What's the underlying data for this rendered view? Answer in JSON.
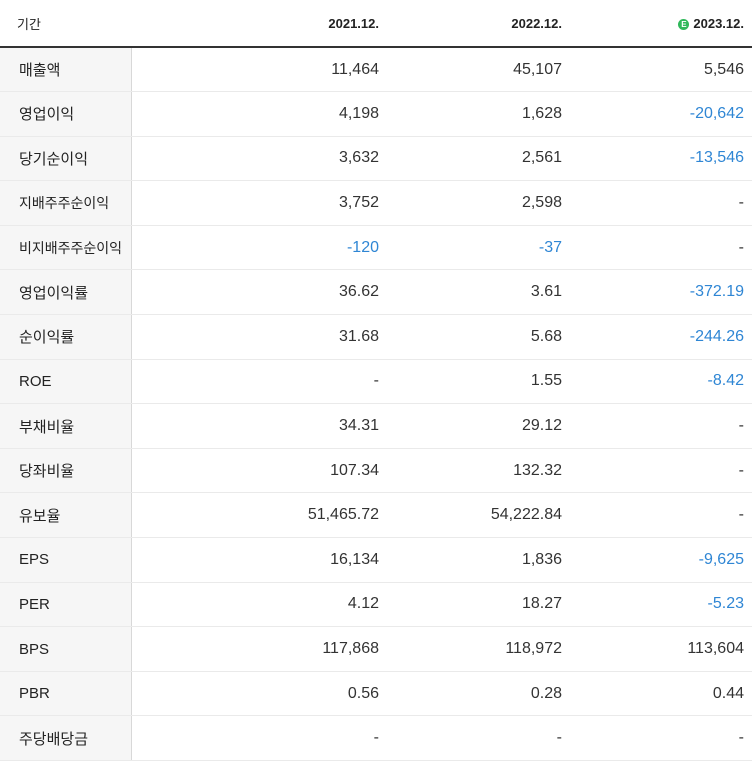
{
  "header": {
    "label": "기간",
    "periods": [
      "2021.12.",
      "2022.12.",
      "2023.12."
    ],
    "estimate_badge": "E"
  },
  "colors": {
    "negative": "#2f86d4",
    "label_bg": "#f6f6f6"
  },
  "rows": [
    {
      "label": "매출액",
      "values": [
        "11,464",
        "45,107",
        "5,546"
      ]
    },
    {
      "label": "영업이익",
      "values": [
        "4,198",
        "1,628",
        "-20,642"
      ]
    },
    {
      "label": "당기순이익",
      "values": [
        "3,632",
        "2,561",
        "-13,546"
      ]
    },
    {
      "label": "지배주주순이익",
      "values": [
        "3,752",
        "2,598",
        "-"
      ]
    },
    {
      "label": "비지배주주순이익",
      "values": [
        "-120",
        "-37",
        "-"
      ]
    },
    {
      "label": "영업이익률",
      "values": [
        "36.62",
        "3.61",
        "-372.19"
      ]
    },
    {
      "label": "순이익률",
      "values": [
        "31.68",
        "5.68",
        "-244.26"
      ]
    },
    {
      "label": "ROE",
      "values": [
        "-",
        "1.55",
        "-8.42"
      ]
    },
    {
      "label": "부채비율",
      "values": [
        "34.31",
        "29.12",
        "-"
      ]
    },
    {
      "label": "당좌비율",
      "values": [
        "107.34",
        "132.32",
        "-"
      ]
    },
    {
      "label": "유보율",
      "values": [
        "51,465.72",
        "54,222.84",
        "-"
      ]
    },
    {
      "label": "EPS",
      "values": [
        "16,134",
        "1,836",
        "-9,625"
      ]
    },
    {
      "label": "PER",
      "values": [
        "4.12",
        "18.27",
        "-5.23"
      ]
    },
    {
      "label": "BPS",
      "values": [
        "117,868",
        "118,972",
        "113,604"
      ]
    },
    {
      "label": "PBR",
      "values": [
        "0.56",
        "0.28",
        "0.44"
      ]
    },
    {
      "label": "주당배당금",
      "values": [
        "-",
        "-",
        "-"
      ]
    }
  ]
}
